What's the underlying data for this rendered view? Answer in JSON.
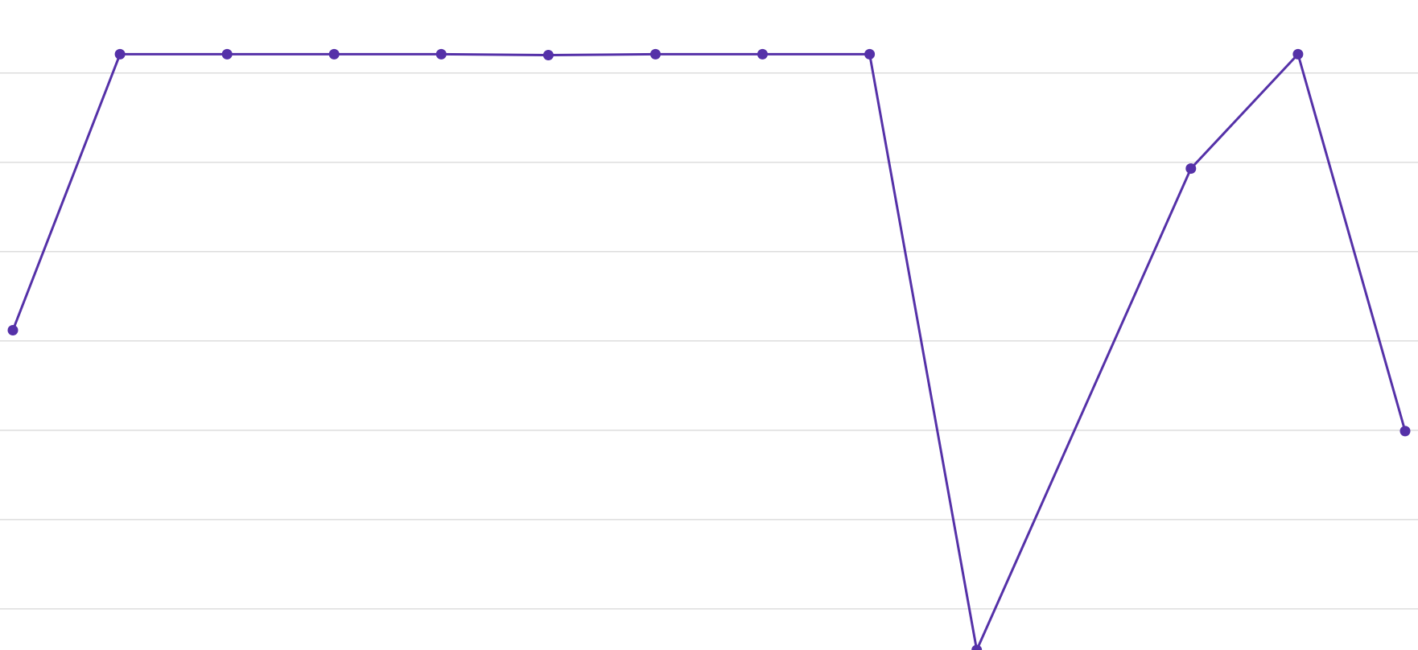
{
  "chart_data": {
    "type": "line",
    "title": "",
    "xlabel": "",
    "ylabel": "",
    "grid": true,
    "legend": "none",
    "x": [
      1,
      2,
      3,
      4,
      5,
      6,
      7,
      8,
      9,
      10,
      11,
      12,
      13,
      14
    ],
    "ylim": [
      0.5,
      7.5
    ],
    "gridlines": [
      1,
      2,
      3,
      4,
      5,
      6,
      7
    ],
    "series": [
      {
        "color": "#5531a8",
        "values": [
          4.12,
          7.21,
          7.21,
          7.21,
          7.21,
          7.2,
          7.21,
          7.21,
          7.21,
          0.54,
          null,
          5.93,
          7.21,
          2.99
        ]
      }
    ]
  }
}
